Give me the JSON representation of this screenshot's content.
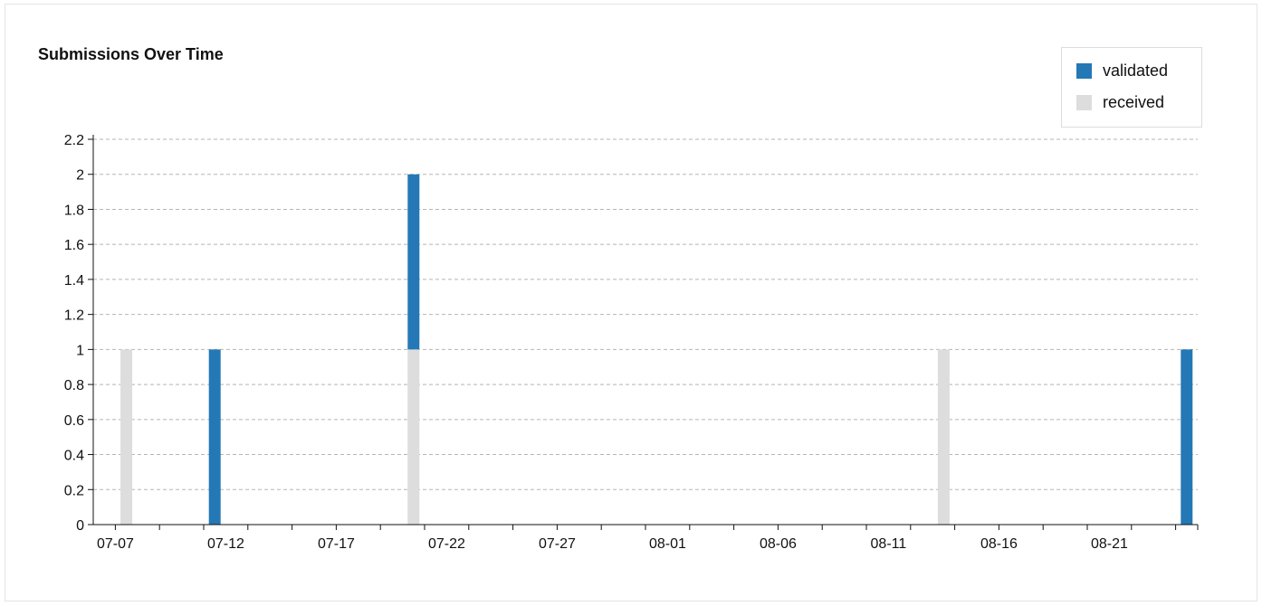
{
  "chart_data": {
    "type": "bar",
    "title": "Submissions Over Time",
    "xlabel": "",
    "ylabel": "",
    "x_type": "date",
    "x_start": "07-06",
    "x_end": "08-24",
    "xlim": [
      "07-06",
      "08-24"
    ],
    "ylim": [
      0,
      2.2
    ],
    "y_ticks": [
      0,
      0.2,
      0.4,
      0.6,
      0.8,
      1,
      1.2,
      1.4,
      1.6,
      1.8,
      2,
      2.2
    ],
    "x_tick_labels": [
      "07-07",
      "07-12",
      "07-17",
      "07-22",
      "07-27",
      "08-01",
      "08-06",
      "08-11",
      "08-16",
      "08-21"
    ],
    "stacked": true,
    "grid": true,
    "legend_position": "top-right",
    "series": [
      {
        "name": "validated",
        "color": "#2478b5",
        "points": [
          {
            "x": "07-11",
            "y": 1
          },
          {
            "x": "07-20",
            "y": 1
          },
          {
            "x": "08-24",
            "y": 1
          }
        ]
      },
      {
        "name": "received",
        "color": "#dddddd",
        "points": [
          {
            "x": "07-07",
            "y": 1
          },
          {
            "x": "07-20",
            "y": 1
          },
          {
            "x": "08-13",
            "y": 1
          }
        ]
      }
    ]
  }
}
